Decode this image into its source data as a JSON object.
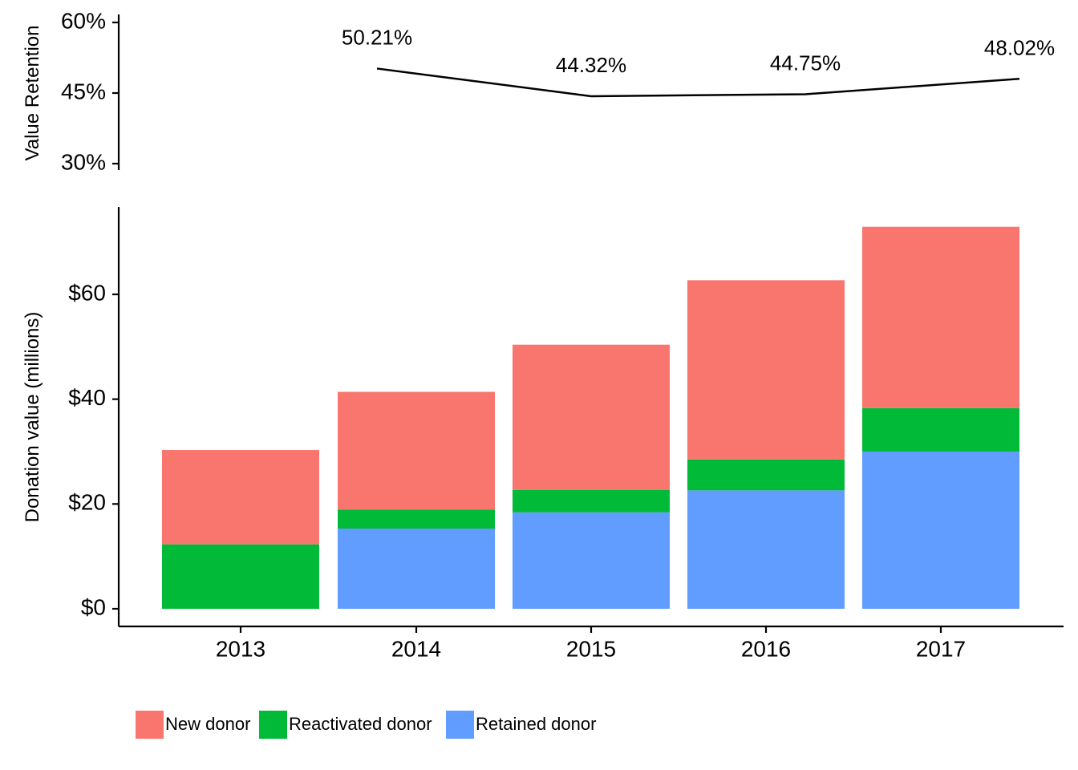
{
  "chart_data": [
    {
      "type": "line",
      "ylabel": "Value Retention",
      "xlabel": "",
      "categories": [
        "2013",
        "2014",
        "2015",
        "2016",
        "2017"
      ],
      "ylim": [
        0.3,
        0.6
      ],
      "yticks": [
        0.3,
        0.45,
        0.6
      ],
      "ytick_labels": [
        "30%",
        "45%",
        "60%"
      ],
      "series": [
        {
          "values": [
            null,
            0.5021,
            0.4432,
            0.4475,
            0.4802
          ],
          "labels": [
            null,
            "50.21%",
            "44.32%",
            "44.75%",
            "48.02%"
          ]
        }
      ],
      "grid": false,
      "colors": {
        "line": "#000000"
      }
    },
    {
      "type": "bar",
      "stacked": true,
      "ylabel": "Donation value (millions)",
      "xlabel": "",
      "categories": [
        "2013",
        "2014",
        "2015",
        "2016",
        "2017"
      ],
      "ylim": [
        0,
        75
      ],
      "yticks": [
        0,
        20,
        40,
        60
      ],
      "ytick_labels": [
        "$0",
        "$20",
        "$40",
        "$60"
      ],
      "series": [
        {
          "name": "Retained donor",
          "values": [
            0,
            15.3,
            18.4,
            22.6,
            30.0
          ],
          "color": "#619CFF"
        },
        {
          "name": "Reactivated donor",
          "values": [
            12.3,
            3.6,
            4.3,
            5.9,
            8.3
          ],
          "color": "#00BA38"
        },
        {
          "name": "New donor",
          "values": [
            18.0,
            22.5,
            27.7,
            34.2,
            34.6
          ],
          "color": "#F8766D"
        }
      ],
      "legend": {
        "position": "bottom-left",
        "entries": [
          {
            "label": "New donor",
            "color": "#F8766D"
          },
          {
            "label": "Reactivated donor",
            "color": "#00BA38"
          },
          {
            "label": "Retained donor",
            "color": "#619CFF"
          }
        ]
      },
      "grid": false
    }
  ]
}
